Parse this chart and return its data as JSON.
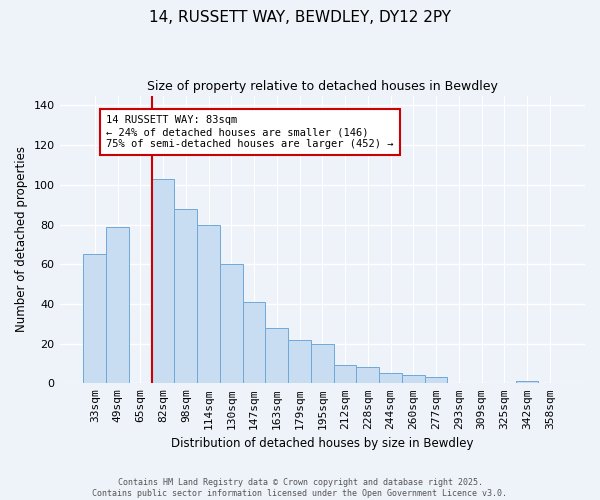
{
  "title1": "14, RUSSETT WAY, BEWDLEY, DY12 2PY",
  "title2": "Size of property relative to detached houses in Bewdley",
  "xlabel": "Distribution of detached houses by size in Bewdley",
  "ylabel": "Number of detached properties",
  "bar_labels": [
    "33sqm",
    "49sqm",
    "65sqm",
    "82sqm",
    "98sqm",
    "114sqm",
    "130sqm",
    "147sqm",
    "163sqm",
    "179sqm",
    "195sqm",
    "212sqm",
    "228sqm",
    "244sqm",
    "260sqm",
    "277sqm",
    "293sqm",
    "309sqm",
    "325sqm",
    "342sqm",
    "358sqm"
  ],
  "bar_values": [
    65,
    79,
    0,
    103,
    88,
    80,
    60,
    41,
    28,
    22,
    20,
    9,
    8,
    5,
    4,
    3,
    0,
    0,
    0,
    1,
    0
  ],
  "bar_color": "#c9ddf2",
  "bar_edge_color": "#6fa8d8",
  "vline_x_index": 3,
  "vline_color": "#cc0000",
  "annotation_title": "14 RUSSETT WAY: 83sqm",
  "annotation_line1": "← 24% of detached houses are smaller (146)",
  "annotation_line2": "75% of semi-detached houses are larger (452) →",
  "annotation_box_color": "#ffffff",
  "annotation_box_edge": "#cc0000",
  "ylim": [
    0,
    145
  ],
  "yticks": [
    0,
    20,
    40,
    60,
    80,
    100,
    120,
    140
  ],
  "footer1": "Contains HM Land Registry data © Crown copyright and database right 2025.",
  "footer2": "Contains public sector information licensed under the Open Government Licence v3.0.",
  "bg_color": "#eef2f9",
  "grid_color": "#ffffff",
  "bar_width": 1.0
}
